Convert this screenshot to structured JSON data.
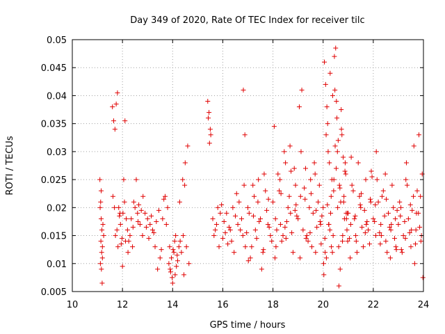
{
  "chart_data": {
    "type": "scatter",
    "title": "Day 349 of 2020, Rate Of TEC Index for receiver tilc",
    "xlabel": "GPS time / hours",
    "ylabel": "ROTI / TECUs",
    "xlim": [
      10,
      24
    ],
    "ylim": [
      0.005,
      0.05
    ],
    "grid": true,
    "marker": "plus",
    "color": "#e00000",
    "x_ticks": [
      "10",
      "12",
      "14",
      "16",
      "18",
      "20",
      "22",
      "24"
    ],
    "y_ticks": [
      "0.005",
      "0.01",
      "0.015",
      "0.02",
      "0.025",
      "0.03",
      "0.035",
      "0.04",
      "0.045",
      "0.05"
    ],
    "series": [
      {
        "name": "ROTI",
        "x": [
          11.1,
          11.13,
          11.15,
          11.18,
          11.2,
          11.12,
          11.16,
          11.19,
          11.14,
          11.17,
          11.11,
          11.22,
          11.25,
          11.15,
          11.2,
          11.6,
          11.65,
          11.7,
          11.75,
          11.8,
          11.85,
          11.9,
          11.95,
          12.0,
          12.05,
          12.1,
          12.15,
          11.62,
          11.72,
          11.82,
          11.92,
          12.02,
          12.12,
          11.68,
          11.78,
          11.88,
          11.98,
          12.08,
          12.2,
          12.3,
          12.4,
          12.5,
          12.6,
          12.7,
          12.8,
          12.25,
          12.35,
          12.45,
          12.55,
          12.65,
          12.75,
          12.22,
          12.42,
          12.62,
          12.82,
          12.9,
          13.0,
          13.1,
          13.2,
          13.3,
          13.4,
          13.5,
          13.6,
          13.7,
          13.8,
          12.95,
          13.05,
          13.15,
          13.25,
          13.35,
          13.45,
          13.55,
          13.65,
          13.75,
          13.85,
          13.9,
          13.95,
          14.0,
          14.05,
          14.1,
          14.15,
          14.2,
          13.88,
          13.98,
          14.08,
          14.18,
          13.92,
          14.02,
          14.12,
          14.25,
          14.3,
          14.4,
          14.5,
          14.6,
          14.35,
          14.45,
          14.55,
          14.28,
          14.48,
          14.65,
          14.42,
          15.4,
          15.45,
          15.5,
          15.42,
          15.47,
          15.52,
          15.6,
          15.7,
          15.8,
          15.9,
          15.65,
          15.75,
          15.85,
          15.95,
          16.0,
          16.1,
          16.2,
          16.3,
          16.4,
          16.5,
          16.6,
          16.7,
          16.8,
          16.9,
          16.05,
          16.15,
          16.25,
          16.35,
          16.45,
          16.55,
          16.65,
          16.75,
          16.85,
          16.95,
          16.82,
          16.88,
          17.0,
          17.1,
          17.2,
          17.3,
          17.4,
          17.5,
          17.6,
          17.7,
          17.8,
          17.9,
          17.05,
          17.15,
          17.25,
          17.35,
          17.45,
          17.55,
          17.65,
          17.75,
          17.85,
          17.95,
          17.02,
          17.22,
          17.42,
          17.62,
          17.82,
          18.0,
          18.1,
          18.2,
          18.3,
          18.4,
          18.5,
          18.6,
          18.7,
          18.8,
          18.9,
          18.05,
          18.15,
          18.25,
          18.35,
          18.45,
          18.55,
          18.65,
          18.75,
          18.85,
          18.95,
          18.08,
          18.28,
          18.48,
          18.68,
          18.88,
          18.12,
          18.32,
          18.52,
          18.72,
          18.92,
          19.0,
          19.1,
          19.2,
          19.3,
          19.4,
          19.5,
          19.6,
          19.7,
          19.8,
          19.9,
          19.05,
          19.15,
          19.25,
          19.35,
          19.45,
          19.55,
          19.65,
          19.75,
          19.85,
          19.95,
          19.08,
          19.28,
          19.48,
          19.68,
          19.88,
          19.12,
          19.32,
          19.52,
          19.72,
          19.92,
          20.0,
          20.05,
          20.1,
          20.15,
          20.2,
          20.25,
          20.3,
          20.35,
          20.4,
          20.45,
          20.5,
          20.55,
          20.6,
          20.65,
          20.7,
          20.75,
          20.8,
          20.85,
          20.9,
          20.95,
          20.02,
          20.08,
          20.12,
          20.18,
          20.22,
          20.28,
          20.32,
          20.38,
          20.42,
          20.48,
          20.52,
          20.58,
          20.62,
          20.68,
          20.72,
          20.78,
          20.82,
          20.88,
          20.92,
          20.98,
          20.03,
          20.13,
          20.23,
          20.33,
          20.43,
          20.53,
          20.63,
          20.73,
          20.83,
          20.93,
          20.07,
          20.17,
          20.27,
          20.37,
          20.47,
          20.57,
          20.67,
          20.77,
          20.87,
          20.97,
          21.0,
          21.1,
          21.2,
          21.3,
          21.4,
          21.5,
          21.6,
          21.7,
          21.8,
          21.9,
          21.05,
          21.15,
          21.25,
          21.35,
          21.45,
          21.55,
          21.65,
          21.75,
          21.85,
          21.95,
          21.08,
          21.28,
          21.48,
          21.68,
          21.88,
          21.12,
          21.32,
          21.52,
          21.72,
          21.92,
          22.0,
          22.1,
          22.2,
          22.3,
          22.4,
          22.5,
          22.6,
          22.7,
          22.8,
          22.9,
          22.05,
          22.15,
          22.25,
          22.35,
          22.45,
          22.55,
          22.65,
          22.75,
          22.85,
          22.95,
          22.08,
          22.28,
          22.48,
          22.68,
          22.88,
          22.12,
          22.32,
          22.52,
          22.72,
          22.92,
          23.0,
          23.1,
          23.2,
          23.3,
          23.4,
          23.5,
          23.6,
          23.7,
          23.8,
          23.9,
          23.05,
          23.15,
          23.25,
          23.35,
          23.45,
          23.55,
          23.65,
          23.75,
          23.85,
          23.95,
          23.08,
          23.28,
          23.48,
          23.68,
          23.88,
          23.12,
          23.32,
          23.52,
          23.72,
          23.92,
          23.98,
          23.82,
          23.62
        ],
        "y": [
          0.025,
          0.021,
          0.018,
          0.016,
          0.013,
          0.01,
          0.009,
          0.0065,
          0.014,
          0.012,
          0.02,
          0.017,
          0.015,
          0.023,
          0.011,
          0.038,
          0.0355,
          0.034,
          0.0385,
          0.0405,
          0.02,
          0.019,
          0.0135,
          0.0095,
          0.025,
          0.0355,
          0.018,
          0.022,
          0.015,
          0.013,
          0.017,
          0.019,
          0.014,
          0.02,
          0.016,
          0.0185,
          0.0145,
          0.021,
          0.016,
          0.015,
          0.013,
          0.02,
          0.019,
          0.017,
          0.015,
          0.014,
          0.018,
          0.021,
          0.025,
          0.0205,
          0.0195,
          0.012,
          0.0165,
          0.0175,
          0.022,
          0.019,
          0.018,
          0.017,
          0.016,
          0.013,
          0.009,
          0.011,
          0.018,
          0.022,
          0.02,
          0.0165,
          0.0145,
          0.0185,
          0.0155,
          0.0175,
          0.0195,
          0.0125,
          0.0215,
          0.017,
          0.01,
          0.009,
          0.011,
          0.0065,
          0.012,
          0.008,
          0.0095,
          0.0105,
          0.013,
          0.0075,
          0.014,
          0.0115,
          0.0085,
          0.0125,
          0.015,
          0.013,
          0.014,
          0.025,
          0.028,
          0.031,
          0.012,
          0.008,
          0.013,
          0.021,
          0.024,
          0.01,
          0.015,
          0.039,
          0.037,
          0.034,
          0.036,
          0.0315,
          0.033,
          0.018,
          0.016,
          0.02,
          0.019,
          0.015,
          0.017,
          0.013,
          0.0205,
          0.0145,
          0.0155,
          0.0135,
          0.016,
          0.02,
          0.0185,
          0.017,
          0.016,
          0.015,
          0.013,
          0.0175,
          0.019,
          0.0165,
          0.014,
          0.012,
          0.0225,
          0.021,
          0.018,
          0.024,
          0.0155,
          0.041,
          0.033,
          0.02,
          0.011,
          0.024,
          0.016,
          0.021,
          0.018,
          0.012,
          0.023,
          0.017,
          0.015,
          0.019,
          0.013,
          0.022,
          0.0145,
          0.0175,
          0.009,
          0.026,
          0.0195,
          0.0165,
          0.014,
          0.0105,
          0.0185,
          0.025,
          0.0125,
          0.0215,
          0.021,
          0.018,
          0.026,
          0.017,
          0.015,
          0.028,
          0.02,
          0.019,
          0.012,
          0.024,
          0.0345,
          0.016,
          0.023,
          0.014,
          0.03,
          0.0175,
          0.022,
          0.0155,
          0.027,
          0.0185,
          0.011,
          0.025,
          0.0165,
          0.031,
          0.0195,
          0.013,
          0.0225,
          0.0145,
          0.0265,
          0.0205,
          0.018,
          0.022,
          0.016,
          0.027,
          0.014,
          0.025,
          0.019,
          0.012,
          0.021,
          0.017,
          0.038,
          0.041,
          0.0235,
          0.015,
          0.02,
          0.013,
          0.028,
          0.0165,
          0.024,
          0.0185,
          0.011,
          0.0215,
          0.0155,
          0.026,
          0.0175,
          0.03,
          0.0145,
          0.0225,
          0.0195,
          0.0135,
          0.02,
          0.046,
          0.042,
          0.038,
          0.03,
          0.028,
          0.019,
          0.025,
          0.015,
          0.047,
          0.0485,
          0.036,
          0.032,
          0.024,
          0.021,
          0.033,
          0.029,
          0.018,
          0.026,
          0.016,
          0.01,
          0.012,
          0.033,
          0.035,
          0.017,
          0.044,
          0.022,
          0.04,
          0.023,
          0.031,
          0.027,
          0.02,
          0.013,
          0.009,
          0.0375,
          0.015,
          0.021,
          0.028,
          0.019,
          0.014,
          0.008,
          0.011,
          0.017,
          0.013,
          0.025,
          0.039,
          0.006,
          0.034,
          0.022,
          0.018,
          0.0145,
          0.0205,
          0.016,
          0.012,
          0.041,
          0.03,
          0.0235,
          0.014,
          0.0265,
          0.019,
          0.019,
          0.017,
          0.023,
          0.015,
          0.028,
          0.02,
          0.013,
          0.025,
          0.016,
          0.021,
          0.0145,
          0.024,
          0.018,
          0.012,
          0.022,
          0.0165,
          0.0195,
          0.0175,
          0.0135,
          0.0255,
          0.011,
          0.0185,
          0.0205,
          0.0155,
          0.0215,
          0.029,
          0.014,
          0.0225,
          0.017,
          0.0265,
          0.018,
          0.015,
          0.021,
          0.017,
          0.023,
          0.014,
          0.019,
          0.016,
          0.02,
          0.013,
          0.0175,
          0.025,
          0.0155,
          0.022,
          0.0185,
          0.012,
          0.0165,
          0.024,
          0.0145,
          0.0195,
          0.0205,
          0.0135,
          0.026,
          0.011,
          0.018,
          0.03,
          0.015,
          0.0215,
          0.017,
          0.0125,
          0.017,
          0.02,
          0.015,
          0.025,
          0.018,
          0.013,
          0.022,
          0.016,
          0.019,
          0.014,
          0.021,
          0.012,
          0.0175,
          0.024,
          0.0155,
          0.0195,
          0.01,
          0.023,
          0.0165,
          0.026,
          0.0185,
          0.0145,
          0.0205,
          0.0135,
          0.022,
          0.0125,
          0.028,
          0.016,
          0.019,
          0.015,
          0.0075,
          0.033,
          0.031
        ]
      }
    ]
  }
}
